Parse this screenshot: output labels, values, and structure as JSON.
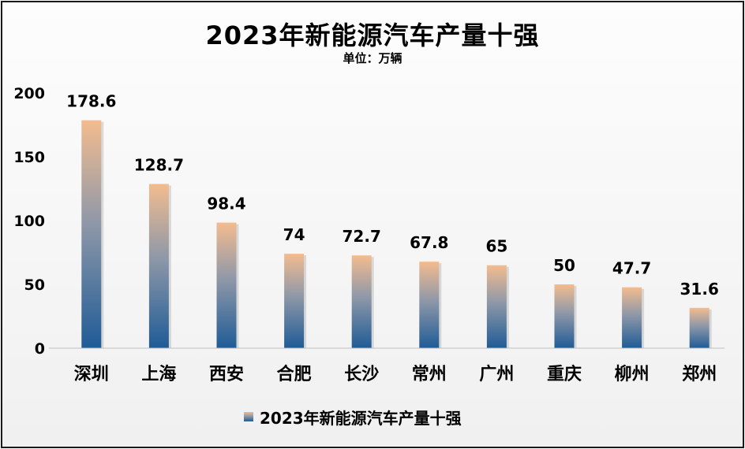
{
  "chart_data": {
    "type": "bar",
    "title": "2023年新能源汽车产量十强",
    "subtitle": "单位：万辆",
    "categories": [
      "深圳",
      "上海",
      "西安",
      "合肥",
      "长沙",
      "常州",
      "广州",
      "重庆",
      "柳州",
      "郑州"
    ],
    "series": [
      {
        "name": "2023年新能源汽车产量十强",
        "values": [
          178.6,
          128.7,
          98.4,
          74,
          72.7,
          67.8,
          65,
          50,
          47.7,
          31.6
        ],
        "data_labels": [
          "178.6",
          "128.7",
          "98.4",
          "74",
          "72.7",
          "67.8",
          "65",
          "50",
          "47.7",
          "31.6"
        ]
      }
    ],
    "ylim": [
      0,
      200
    ],
    "yticks": [
      0,
      50,
      100,
      150,
      200
    ],
    "grid": false,
    "legend_position": "bottom",
    "colors": {
      "bar_top": "#f3bc8f",
      "bar_mid": "#8f98a8",
      "bar_bottom": "#1f5b96"
    }
  }
}
